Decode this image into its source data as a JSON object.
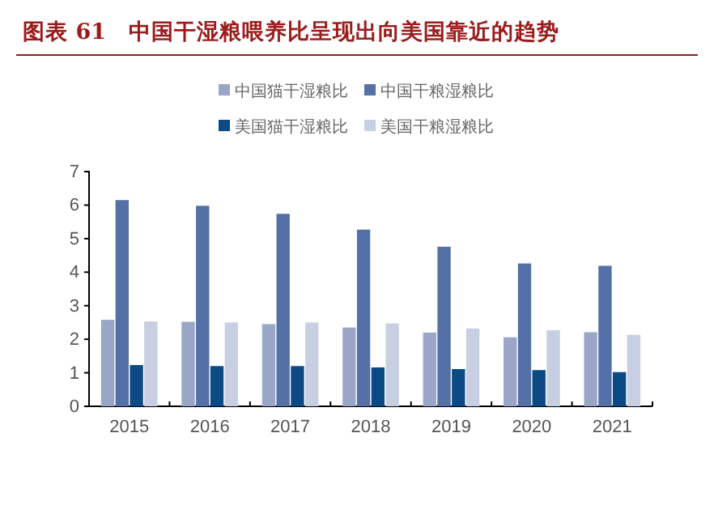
{
  "chart_data": {
    "type": "bar",
    "title": "图表 61　中国干湿粮喂养比呈现出向美国靠近的趋势",
    "categories": [
      "2015",
      "2016",
      "2017",
      "2018",
      "2019",
      "2020",
      "2021"
    ],
    "series": [
      {
        "name": "中国猫干湿粮比",
        "color": "#9aa6c8",
        "values": [
          2.58,
          2.52,
          2.45,
          2.35,
          2.2,
          2.06,
          2.21
        ]
      },
      {
        "name": "中国干粮湿粮比",
        "color": "#5470a6",
        "values": [
          6.15,
          5.98,
          5.74,
          5.27,
          4.76,
          4.26,
          4.19
        ]
      },
      {
        "name": "美国猫干湿粮比",
        "color": "#0b4a85",
        "values": [
          1.23,
          1.2,
          1.2,
          1.16,
          1.11,
          1.08,
          1.02
        ]
      },
      {
        "name": "美国干粮湿粮比",
        "color": "#c8cfe3",
        "values": [
          2.53,
          2.5,
          2.5,
          2.47,
          2.32,
          2.27,
          2.13
        ]
      }
    ],
    "ylim": [
      0,
      7
    ],
    "yticks": [
      0,
      1,
      2,
      3,
      4,
      5,
      6,
      7
    ],
    "grid": false,
    "legend": "top"
  }
}
